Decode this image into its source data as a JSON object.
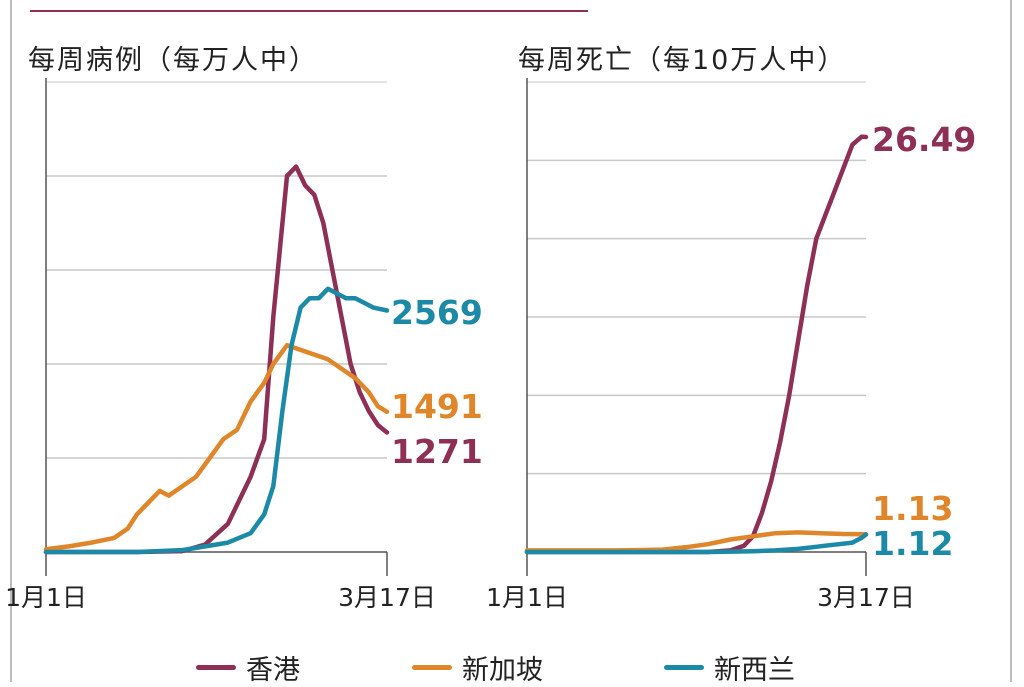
{
  "colors": {
    "hong_kong": "#8e2f55",
    "singapore": "#e0862a",
    "new_zealand": "#1c8aa6",
    "grid": "#c8c8c8",
    "axis": "#555555",
    "text": "#222222"
  },
  "legend": [
    {
      "label": "香港",
      "color": "#8e2f55"
    },
    {
      "label": "新加坡",
      "color": "#e0862a"
    },
    {
      "label": "新西兰",
      "color": "#1c8aa6"
    }
  ],
  "chart_data": [
    {
      "type": "line",
      "title": "每周病例（每万人中）",
      "x_tick_labels": [
        "1月1日",
        "3月17日"
      ],
      "x_range": [
        "1月1日",
        "3月17日"
      ],
      "grid": "horizontal",
      "series": [
        {
          "name": "香港",
          "color": "#8e2f55",
          "end_label": "1271",
          "x": [
            0,
            10,
            20,
            30,
            35,
            40,
            45,
            48,
            50,
            53,
            55,
            57,
            59,
            61,
            63,
            65,
            67,
            69,
            71,
            73,
            75
          ],
          "y": [
            0,
            0,
            0,
            10,
            80,
            300,
            800,
            1200,
            2500,
            4000,
            4100,
            3900,
            3800,
            3500,
            3000,
            2500,
            2000,
            1700,
            1500,
            1350,
            1271
          ]
        },
        {
          "name": "新加坡",
          "color": "#e0862a",
          "end_label": "1491",
          "x": [
            0,
            5,
            10,
            15,
            18,
            20,
            22,
            25,
            27,
            30,
            33,
            36,
            39,
            42,
            45,
            48,
            50,
            53,
            56,
            59,
            62,
            65,
            68,
            71,
            73,
            75
          ],
          "y": [
            30,
            60,
            100,
            150,
            250,
            400,
            500,
            650,
            600,
            700,
            800,
            1000,
            1200,
            1300,
            1600,
            1800,
            2000,
            2200,
            2150,
            2100,
            2050,
            1950,
            1850,
            1700,
            1550,
            1491
          ]
        },
        {
          "name": "新西兰",
          "color": "#1c8aa6",
          "end_label": "2569",
          "x": [
            0,
            10,
            20,
            30,
            40,
            45,
            48,
            50,
            52,
            54,
            56,
            58,
            60,
            62,
            64,
            66,
            68,
            70,
            72,
            75
          ],
          "y": [
            0,
            0,
            0,
            20,
            100,
            200,
            400,
            700,
            1500,
            2200,
            2600,
            2700,
            2700,
            2800,
            2750,
            2700,
            2700,
            2650,
            2600,
            2569
          ]
        }
      ]
    },
    {
      "type": "line",
      "title": "每周死亡（每10万人中）",
      "x_tick_labels": [
        "1月1日",
        "3月17日"
      ],
      "x_range": [
        "1月1日",
        "3月17日"
      ],
      "grid": "horizontal",
      "series": [
        {
          "name": "香港",
          "color": "#8e2f55",
          "end_label": "26.49",
          "x": [
            0,
            20,
            40,
            45,
            48,
            50,
            52,
            54,
            56,
            58,
            60,
            62,
            64,
            66,
            68,
            70,
            72,
            74,
            75
          ],
          "y": [
            0,
            0,
            0,
            0.1,
            0.4,
            1,
            2.5,
            4.5,
            7,
            10,
            13.5,
            17,
            20,
            21.5,
            23,
            24.5,
            26,
            26.5,
            26.49
          ]
        },
        {
          "name": "新加坡",
          "color": "#e0862a",
          "end_label": "1.13",
          "x": [
            0,
            10,
            20,
            30,
            35,
            40,
            45,
            50,
            55,
            60,
            65,
            70,
            75
          ],
          "y": [
            0.1,
            0.1,
            0.1,
            0.15,
            0.3,
            0.5,
            0.8,
            1.0,
            1.2,
            1.25,
            1.2,
            1.15,
            1.13
          ]
        },
        {
          "name": "新西兰",
          "color": "#1c8aa6",
          "end_label": "1.12",
          "x": [
            0,
            20,
            40,
            50,
            55,
            60,
            63,
            66,
            69,
            72,
            74,
            75
          ],
          "y": [
            0,
            0,
            0,
            0.05,
            0.1,
            0.2,
            0.3,
            0.4,
            0.5,
            0.6,
            0.9,
            1.12
          ]
        }
      ]
    }
  ]
}
